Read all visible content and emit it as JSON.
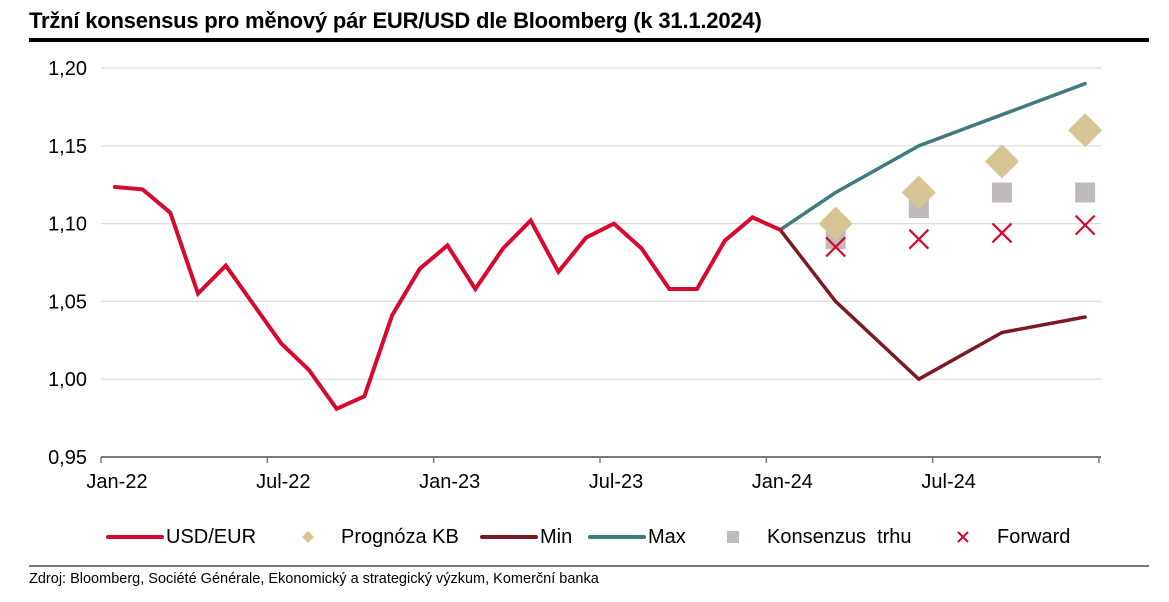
{
  "chart_data": {
    "type": "line",
    "title": "Tržní konsensus pro měnový pár EUR/USD dle Bloomberg (k 31.1.2024)",
    "source": "Zdroj: Bloomberg, Société Générale, Ekonomický a strategický výzkum, Komerční banka",
    "xlabel": "",
    "ylabel": "",
    "ylim": [
      0.95,
      1.2
    ],
    "yticks": [
      1.2,
      1.15,
      1.1,
      1.05,
      1.0,
      0.95
    ],
    "ytick_labels": [
      "1,20",
      "1,15",
      "1,10",
      "1,05",
      "1,00",
      "0,95"
    ],
    "xlim_months": [
      0,
      36
    ],
    "xticks_months": [
      0,
      6,
      12,
      18,
      24,
      30,
      36
    ],
    "xtick_labels": [
      "Jan-22",
      "Jul-22",
      "Jan-23",
      "Jul-23",
      "Jan-24",
      "Jul-24",
      ""
    ],
    "grid": true,
    "legend_position": "bottom",
    "colors": {
      "usd_eur": "#d7092f",
      "prognoza": "#d6c494",
      "min": "#7a1a22",
      "max": "#3f7a80",
      "konsenzus": "#bfbabb",
      "forward": "#d7092f",
      "grid": "#dcdcdc",
      "axis": "#7a7a7a"
    },
    "series": [
      {
        "name": "USD/EUR",
        "key": "usd_eur",
        "kind": "line",
        "x_months": [
          0.5,
          1.5,
          2.5,
          3.5,
          4.5,
          5.5,
          6.5,
          7.5,
          8.5,
          9.5,
          10.5,
          11.5,
          12.5,
          13.5,
          14.5,
          15.5,
          16.5,
          17.5,
          18.5,
          19.5,
          20.5,
          21.5,
          22.5,
          23.5,
          24.5
        ],
        "values": [
          1.1235,
          1.122,
          1.107,
          1.055,
          1.073,
          1.048,
          1.023,
          1.006,
          0.981,
          0.989,
          1.041,
          1.071,
          1.086,
          1.058,
          1.084,
          1.102,
          1.069,
          1.091,
          1.1,
          1.084,
          1.058,
          1.058,
          1.089,
          1.104,
          1.096
        ]
      },
      {
        "name": "Prognóza KB",
        "key": "prognoza",
        "kind": "diamond",
        "x_months": [
          26.5,
          29.5,
          32.5,
          35.5
        ],
        "values": [
          1.1,
          1.12,
          1.14,
          1.16
        ]
      },
      {
        "name": "Min",
        "key": "min",
        "kind": "line",
        "x_months": [
          24.5,
          26.5,
          29.5,
          32.5,
          35.5
        ],
        "values": [
          1.096,
          1.05,
          1.0,
          1.03,
          1.04
        ]
      },
      {
        "name": "Max",
        "key": "max",
        "kind": "line",
        "x_months": [
          24.5,
          26.5,
          29.5,
          32.5,
          35.5
        ],
        "values": [
          1.096,
          1.12,
          1.15,
          1.17,
          1.19
        ]
      },
      {
        "name": "Konsenzus  trhu",
        "key": "konsenzus",
        "kind": "square",
        "x_months": [
          26.5,
          29.5,
          32.5,
          35.5
        ],
        "values": [
          1.09,
          1.11,
          1.12,
          1.12
        ]
      },
      {
        "name": "Forward",
        "key": "forward",
        "kind": "cross",
        "x_months": [
          26.5,
          29.5,
          32.5,
          35.5
        ],
        "values": [
          1.085,
          1.09,
          1.094,
          1.099
        ]
      }
    ]
  },
  "legend": {
    "items": [
      {
        "label": "USD/EUR",
        "marker": "line"
      },
      {
        "label": "Prognóza KB",
        "marker": "diamond"
      },
      {
        "label": "Min",
        "marker": "line"
      },
      {
        "label": "Max",
        "marker": "line"
      },
      {
        "label": "Konsenzus  trhu",
        "marker": "square"
      },
      {
        "label": "Forward",
        "marker": "cross"
      }
    ]
  }
}
